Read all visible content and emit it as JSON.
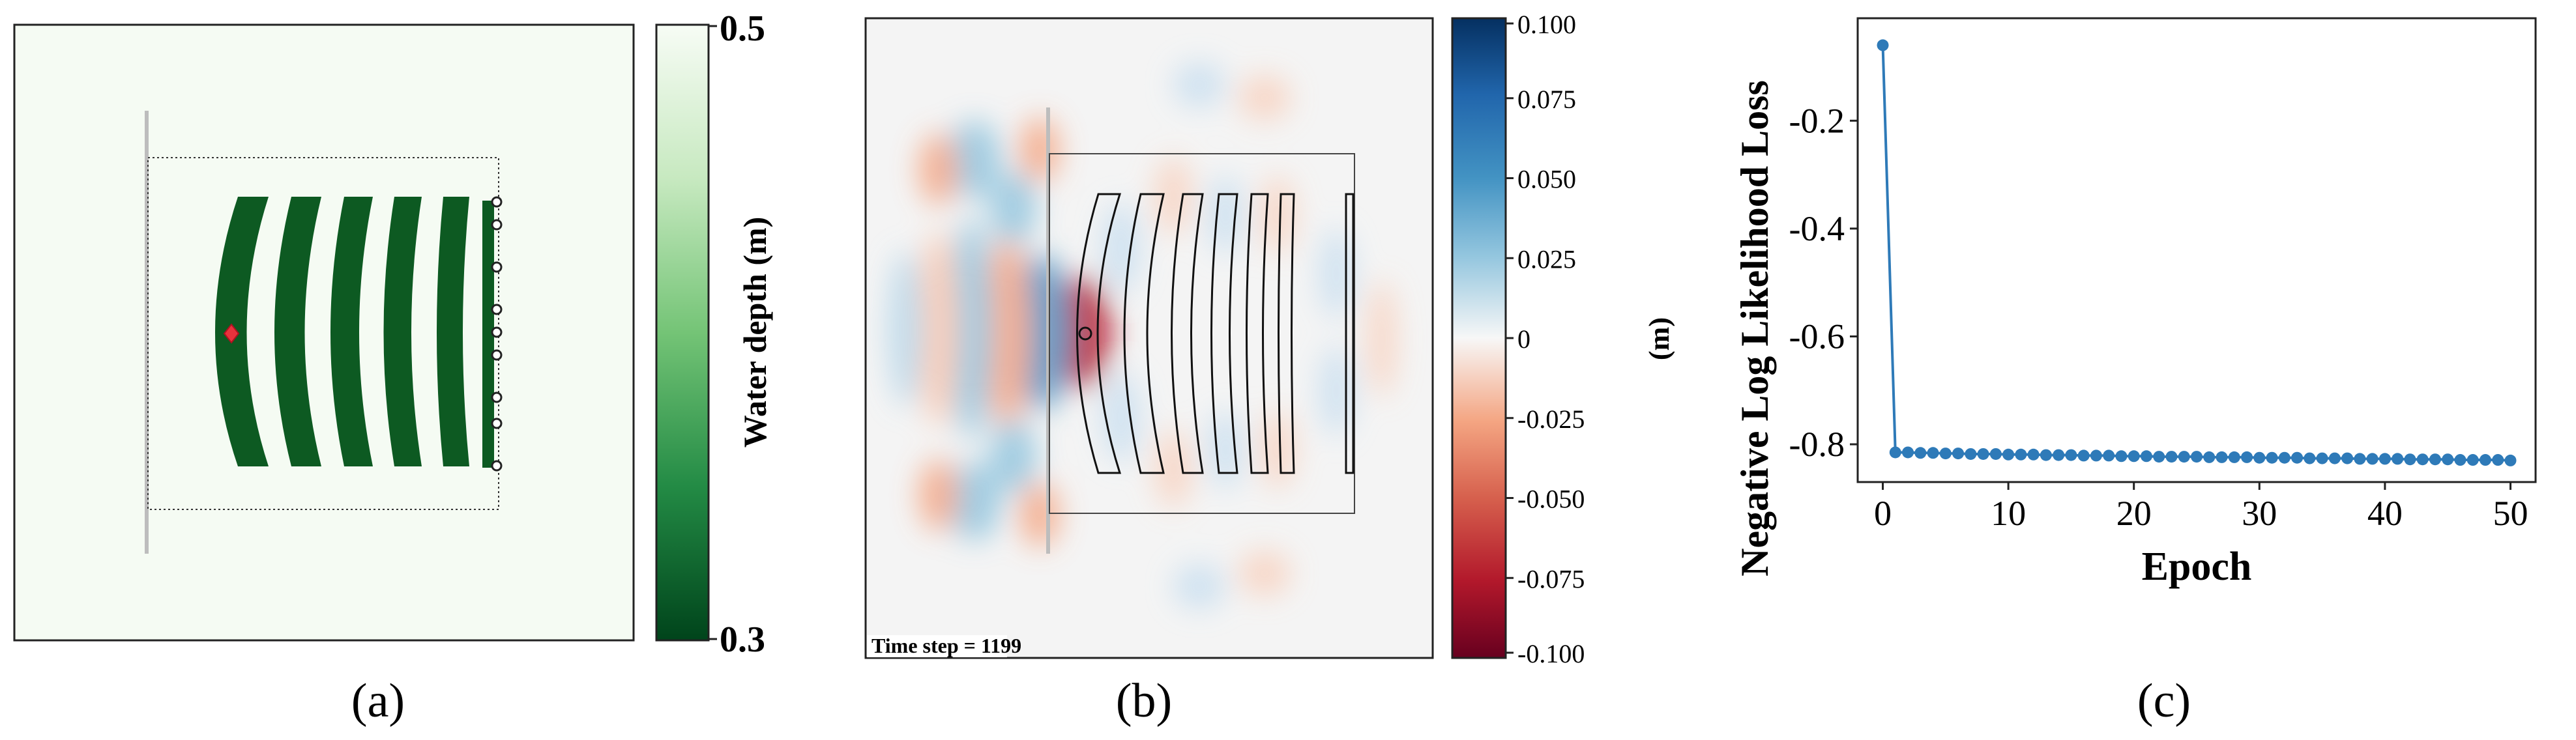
{
  "panels": {
    "a": {
      "caption": "(a)",
      "colorbar": {
        "label": "Water depth (m)",
        "max_label": "0.5",
        "min_label": "0.3",
        "colors": {
          "top": "#f7fcf5",
          "bottom": "#00441b"
        }
      },
      "colors": {
        "background": "#f5fbf3",
        "lens": "#0d5a22",
        "marker": "#e8323c"
      }
    },
    "b": {
      "caption": "(b)",
      "time_step_label": "Time step = 1199",
      "colorbar": {
        "label": "(m)",
        "tick_labels": [
          "0.100",
          "0.075",
          "0.050",
          "0.025",
          "0",
          "-0.025",
          "-0.050",
          "-0.075",
          "-0.100"
        ],
        "tick_values": [
          0.1,
          0.075,
          0.05,
          0.025,
          0,
          -0.025,
          -0.05,
          -0.075,
          -0.1
        ],
        "colors": {
          "top": "#053061",
          "mid": "#f7f7f7",
          "bottom": "#67001f"
        }
      }
    },
    "c": {
      "caption": "(c)"
    }
  },
  "chart_data": {
    "type": "line",
    "title": "",
    "xlabel": "Epoch",
    "ylabel": "Negative Log Likelihood Loss",
    "xlim": [
      -2,
      52
    ],
    "ylim": [
      -0.87,
      -0.01
    ],
    "xticks": [
      0,
      10,
      20,
      30,
      40,
      50
    ],
    "xtick_labels": [
      "0",
      "10",
      "20",
      "30",
      "40",
      "50"
    ],
    "yticks": [
      -0.2,
      -0.4,
      -0.6,
      -0.8
    ],
    "ytick_labels": [
      "-0.2",
      "-0.4",
      "-0.6",
      "-0.8"
    ],
    "series": [
      {
        "name": "loss",
        "color": "#2e7ab8",
        "x": [
          0,
          1,
          2,
          3,
          4,
          5,
          6,
          7,
          8,
          9,
          10,
          11,
          12,
          13,
          14,
          15,
          16,
          17,
          18,
          19,
          20,
          21,
          22,
          23,
          24,
          25,
          26,
          27,
          28,
          29,
          30,
          31,
          32,
          33,
          34,
          35,
          36,
          37,
          38,
          39,
          40,
          41,
          42,
          43,
          44,
          45,
          46,
          47,
          48,
          49,
          50
        ],
        "y": [
          -0.06,
          -0.815,
          -0.815,
          -0.816,
          -0.816,
          -0.817,
          -0.817,
          -0.818,
          -0.818,
          -0.818,
          -0.819,
          -0.819,
          -0.819,
          -0.82,
          -0.82,
          -0.82,
          -0.821,
          -0.821,
          -0.821,
          -0.822,
          -0.822,
          -0.822,
          -0.823,
          -0.823,
          -0.823,
          -0.823,
          -0.824,
          -0.824,
          -0.824,
          -0.824,
          -0.825,
          -0.825,
          -0.825,
          -0.825,
          -0.826,
          -0.826,
          -0.826,
          -0.826,
          -0.827,
          -0.827,
          -0.827,
          -0.827,
          -0.828,
          -0.828,
          -0.828,
          -0.828,
          -0.829,
          -0.829,
          -0.829,
          -0.829,
          -0.83
        ]
      }
    ]
  }
}
